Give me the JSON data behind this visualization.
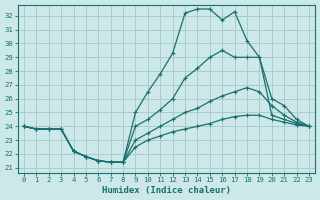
{
  "xlabel": "Humidex (Indice chaleur)",
  "xlim": [
    -0.5,
    23.5
  ],
  "ylim": [
    20.6,
    32.8
  ],
  "yticks": [
    21,
    22,
    23,
    24,
    25,
    26,
    27,
    28,
    29,
    30,
    31,
    32
  ],
  "xticks": [
    0,
    1,
    2,
    3,
    4,
    5,
    6,
    7,
    8,
    9,
    10,
    11,
    12,
    13,
    14,
    15,
    16,
    17,
    18,
    19,
    20,
    21,
    22,
    23
  ],
  "bg_color": "#cce8e8",
  "grid_color": "#aacccc",
  "line_color": "#1a7070",
  "lines": [
    [
      24.0,
      23.8,
      23.8,
      23.8,
      22.2,
      21.8,
      21.5,
      21.4,
      21.4,
      25.0,
      26.5,
      27.8,
      29.3,
      32.2,
      32.5,
      32.5,
      31.7,
      32.3,
      30.2,
      29.0,
      24.8,
      24.5,
      24.2,
      24.0
    ],
    [
      24.0,
      23.8,
      23.8,
      23.8,
      22.2,
      21.8,
      21.5,
      21.4,
      21.4,
      24.0,
      24.5,
      25.2,
      26.0,
      27.5,
      28.2,
      29.0,
      29.5,
      29.0,
      29.0,
      29.0,
      26.0,
      25.5,
      24.5,
      24.0
    ],
    [
      24.0,
      23.8,
      23.8,
      23.8,
      22.2,
      21.8,
      21.5,
      21.4,
      21.4,
      23.0,
      23.5,
      24.0,
      24.5,
      25.0,
      25.3,
      25.8,
      26.2,
      26.5,
      26.8,
      26.5,
      25.5,
      24.8,
      24.3,
      24.0
    ],
    [
      24.0,
      23.8,
      23.8,
      23.8,
      22.2,
      21.8,
      21.5,
      21.4,
      21.4,
      22.5,
      23.0,
      23.3,
      23.6,
      23.8,
      24.0,
      24.2,
      24.5,
      24.7,
      24.8,
      24.8,
      24.5,
      24.3,
      24.1,
      24.0
    ]
  ]
}
